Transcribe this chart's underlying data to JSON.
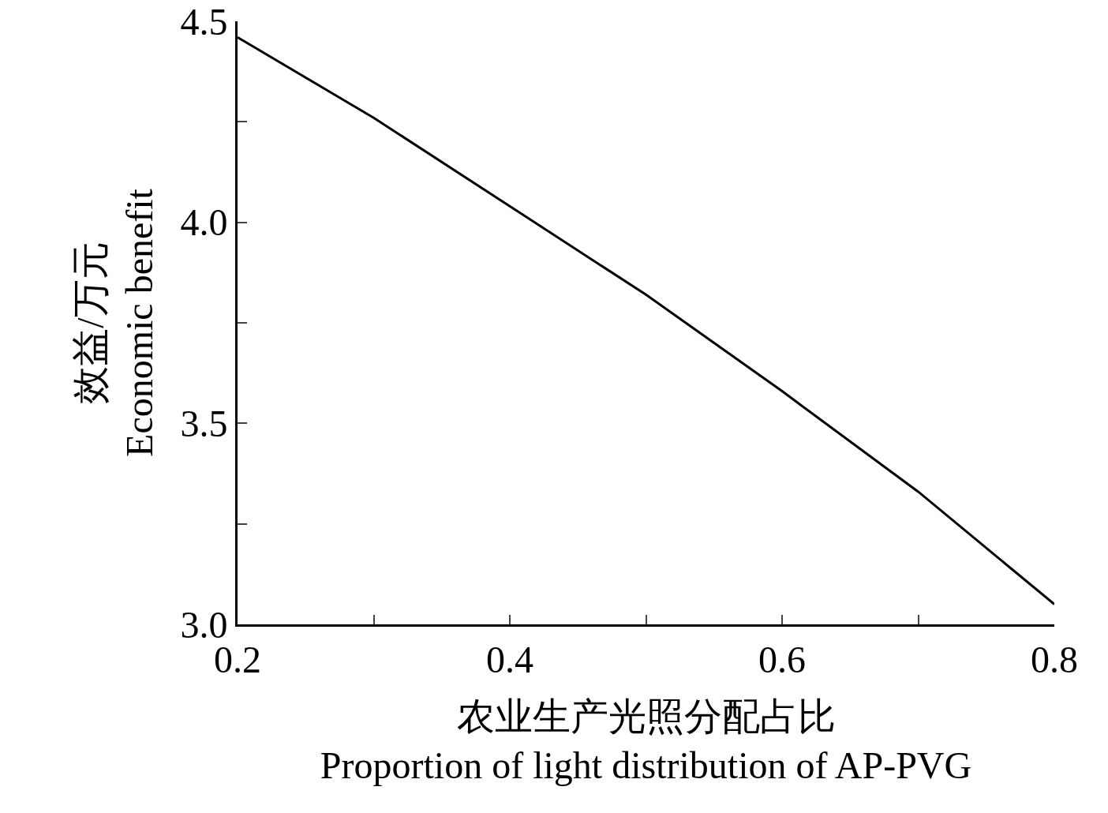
{
  "chart_data": {
    "type": "line",
    "xlabel": "农业生产光照分配占比\nProportion of light distribution of AP-PVG",
    "ylabel": "效益/万元\nEconomic benefit",
    "x": [
      0.2,
      0.3,
      0.4,
      0.5,
      0.6,
      0.7,
      0.8
    ],
    "series": [
      {
        "color": "#000000",
        "values": [
          4.46,
          4.26,
          4.04,
          3.82,
          3.58,
          3.33,
          3.05
        ]
      }
    ],
    "xlim": [
      0.2,
      0.8
    ],
    "xticks": [
      0.2,
      {
        "value": 0.3,
        "label": null
      },
      0.4,
      {
        "value": 0.5,
        "label": null
      },
      0.6,
      {
        "value": 0.7,
        "label": null
      },
      0.8
    ],
    "ylim": [
      3.0,
      4.5
    ],
    "yticks": [
      {
        "value": 3.0,
        "label": "3.0"
      },
      {
        "value": 3.25,
        "label": null
      },
      {
        "value": 3.5,
        "label": "3.5"
      },
      {
        "value": 3.75,
        "label": null
      },
      {
        "value": 4.0,
        "label": "4.0"
      },
      {
        "value": 4.25,
        "label": null
      },
      {
        "value": 4.5,
        "label": "4.5"
      }
    ],
    "grid": false,
    "marker": "none",
    "line_style": "solid"
  }
}
